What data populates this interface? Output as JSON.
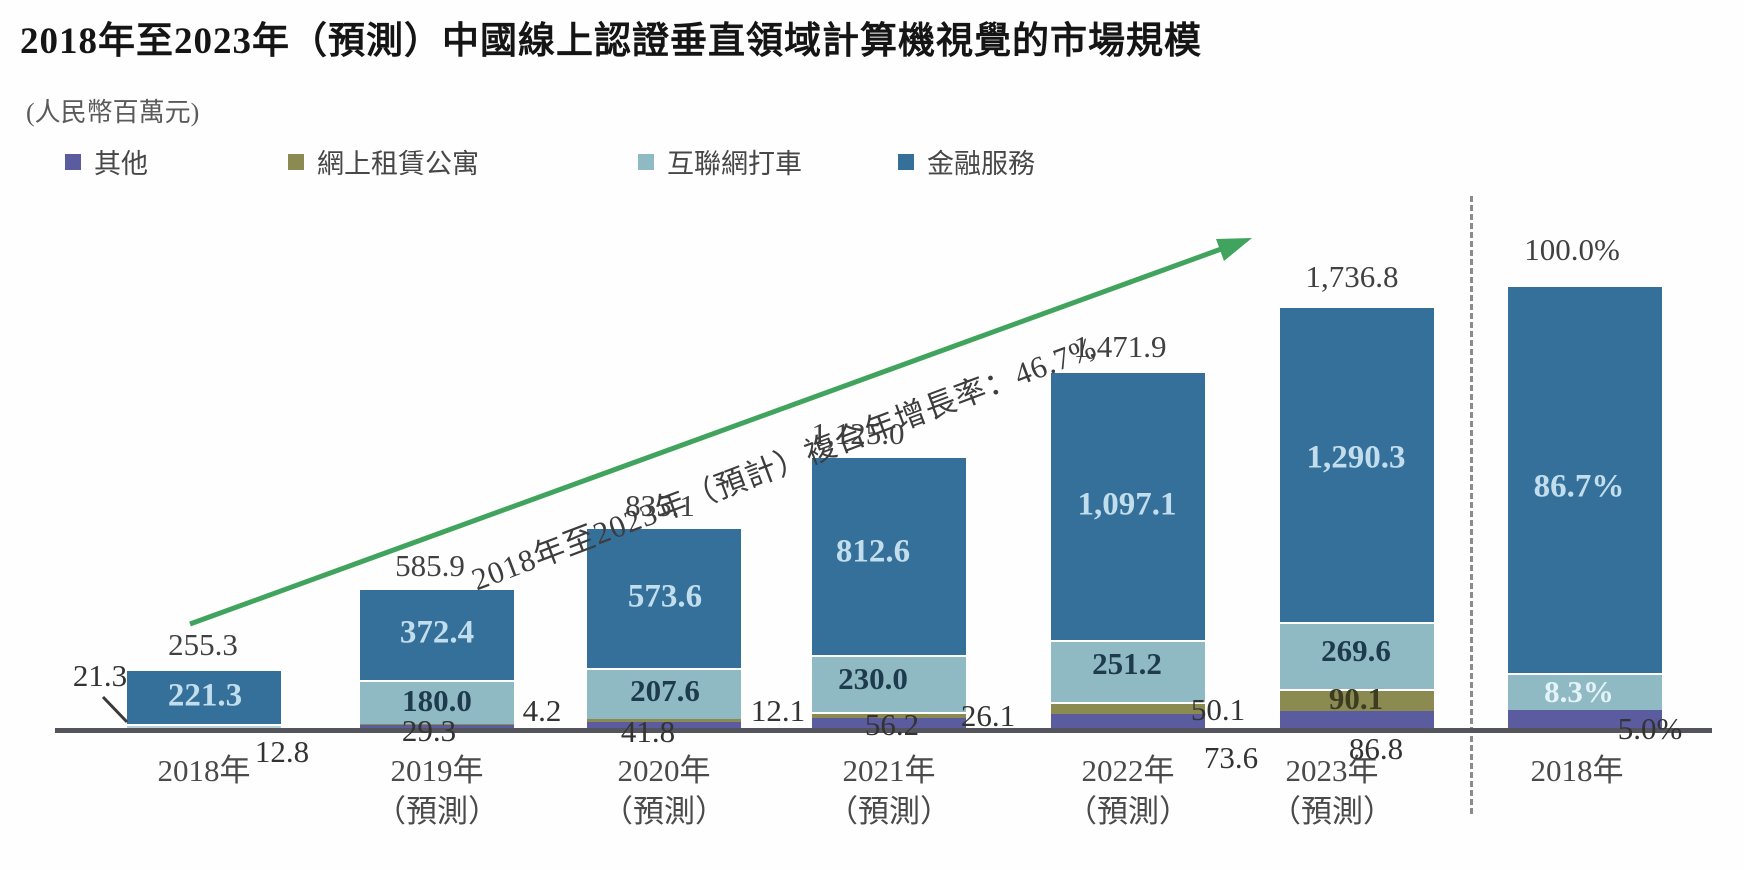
{
  "title": "2018年至2023年（預測）中國線上認證垂直領域計算機視覺的市場規模",
  "unit_label": "(人民幣百萬元)",
  "cagr_annotation": "2018年至2023年（預計）複合年增長率：46.7%",
  "legend": [
    {
      "label": "其他",
      "color": "#5b5b9f"
    },
    {
      "label": "網上租賃公寓",
      "color": "#8b8b51"
    },
    {
      "label": "互聯網打車",
      "color": "#8fb9c3"
    },
    {
      "label": "金融服務",
      "color": "#35709b"
    }
  ],
  "colors": {
    "finance_blue": "#35709b",
    "ride_teal": "#8fb9c3",
    "ride_teal_2018": "#b7d3da",
    "rental_olive": "#8b8b51",
    "other_purple": "#5b5b9f",
    "axis_line": "#54545c",
    "divider_dash": "#8c8c8c",
    "arrow_green": "#41a45e"
  },
  "chart_data": {
    "type": "bar",
    "stacked": true,
    "title": "2018年至2023年（預測）中國線上認證垂直領域計算機視覺的市場規模",
    "unit": "人民幣百萬元",
    "cagr_2018_2023": "46.7%",
    "legend_position": "top-left",
    "grid": false,
    "series_order_bottom_to_top": [
      "其他",
      "網上租賃公寓",
      "互聯網打車",
      "金融服務"
    ],
    "series_colors": {
      "其他": "#5b5b9f",
      "網上租賃公寓": "#8b8b51",
      "互聯網打車": "#8fb9c3",
      "金融服務": "#35709b"
    },
    "bars": [
      {
        "category_line1": "2018年",
        "category_line2": "",
        "total": 255.3,
        "total_label": "255.3",
        "percent": false,
        "values": {
          "其他": 12.8,
          "網上租賃公寓": 0,
          "互聯網打車": 21.3,
          "金融服務": 221.3
        },
        "labels": {
          "其他": "12.8",
          "互聯網打車": "21.3",
          "金融服務": "221.3"
        }
      },
      {
        "category_line1": "2019年",
        "category_line2": "（預測）",
        "total": 585.9,
        "total_label": "585.9",
        "percent": false,
        "values": {
          "其他": 29.3,
          "網上租賃公寓": 4.2,
          "互聯網打車": 180.0,
          "金融服務": 372.4
        },
        "labels": {
          "其他": "29.3",
          "網上租賃公寓": "4.2",
          "互聯網打車": "180.0",
          "金融服務": "372.4"
        }
      },
      {
        "category_line1": "2020年",
        "category_line2": "（預測）",
        "total": 835.1,
        "total_label": "835.1",
        "percent": false,
        "values": {
          "其他": 41.8,
          "網上租賃公寓": 12.1,
          "互聯網打車": 207.6,
          "金融服務": 573.6
        },
        "labels": {
          "其他": "41.8",
          "網上租賃公寓": "12.1",
          "互聯網打車": "207.6",
          "金融服務": "573.6"
        }
      },
      {
        "category_line1": "2021年",
        "category_line2": "（預測）",
        "total": 1125.0,
        "total_label": "1,125.0",
        "percent": false,
        "values": {
          "其他": 56.2,
          "網上租賃公寓": 26.1,
          "互聯網打車": 230.0,
          "金融服務": 812.6
        },
        "labels": {
          "其他": "56.2",
          "網上租賃公寓": "26.1",
          "互聯網打車": "230.0",
          "金融服務": "812.6"
        }
      },
      {
        "category_line1": "2022年",
        "category_line2": "（預測）",
        "total": 1471.9,
        "total_label": "1,471.9",
        "percent": false,
        "values": {
          "其他": 73.6,
          "網上租賃公寓": 50.1,
          "互聯網打車": 251.2,
          "金融服務": 1097.1
        },
        "labels": {
          "其他": "73.6",
          "網上租賃公寓": "50.1",
          "互聯網打車": "251.2",
          "金融服務": "1,097.1"
        }
      },
      {
        "category_line1": "2023年",
        "category_line2": "（預測）",
        "total": 1736.8,
        "total_label": "1,736.8",
        "percent": false,
        "values": {
          "其他": 86.8,
          "網上租賃公寓": 90.1,
          "互聯網打車": 269.6,
          "金融服務": 1290.3
        },
        "labels": {
          "其他": "86.8",
          "網上租賃公寓": "90.1",
          "互聯網打車": "269.6",
          "金融服務": "1,290.3"
        }
      },
      {
        "category_line1": "2018年",
        "category_line2": "",
        "total": 100.0,
        "total_label": "100.0%",
        "percent": true,
        "values": {
          "其他": 5.0,
          "網上租賃公寓": 0,
          "互聯網打車": 8.3,
          "金融服務": 86.7
        },
        "labels": {
          "其他": "5.0%",
          "互聯網打車": "8.3%",
          "金融服務": "86.7%"
        }
      }
    ]
  }
}
